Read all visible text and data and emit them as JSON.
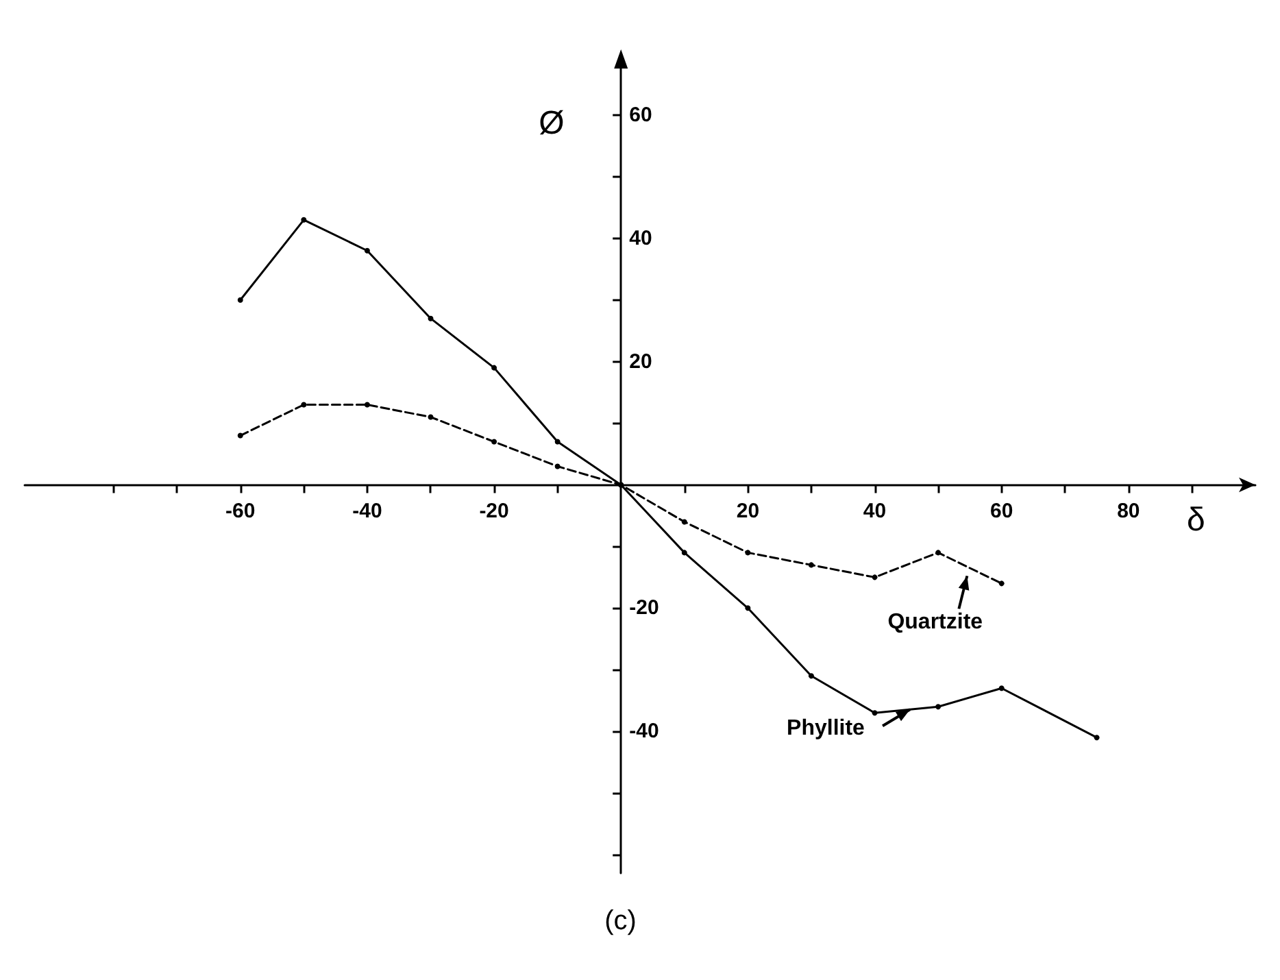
{
  "chart_data": {
    "type": "line",
    "xlabel": "δ",
    "ylabel": "Ø",
    "series": [
      {
        "color": "#000000",
        "line_style": "solid",
        "x": [
          -60,
          -50,
          -40,
          -30,
          -20,
          -10,
          0,
          10,
          20,
          30,
          40,
          50,
          60,
          75
        ],
        "values": [
          30,
          43,
          38,
          27,
          19,
          7,
          0,
          -11,
          -20,
          -31,
          -37,
          -36,
          -33,
          -41
        ]
      },
      {
        "color": "#000000",
        "line_style": "dashed",
        "x": [
          -60,
          -50,
          -40,
          -30,
          -20,
          -10,
          0,
          10,
          20,
          30,
          40,
          50,
          60
        ],
        "values": [
          8,
          13,
          13,
          11,
          7,
          3,
          0,
          -6,
          -11,
          -13,
          -15,
          -11,
          -16
        ]
      }
    ],
    "annotations": [
      {
        "text": "Quartzite",
        "x": 55,
        "y": -13
      },
      {
        "text": "Phyllite",
        "x": 46,
        "y": -36
      },
      "(c)"
    ],
    "marker": "circle",
    "grid": false,
    "xlim": [
      -94,
      100
    ],
    "ylim": [
      -63,
      68
    ],
    "xticks": [
      {
        "value": -80,
        "label": null
      },
      {
        "value": -70,
        "label": null
      },
      -60,
      {
        "value": -50,
        "label": null
      },
      -40,
      {
        "value": -30,
        "label": null
      },
      -20,
      {
        "value": -10,
        "label": null
      },
      {
        "value": 10,
        "label": null
      },
      20,
      {
        "value": 30,
        "label": null
      },
      40,
      {
        "value": 50,
        "label": null
      },
      60,
      {
        "value": 70,
        "label": null
      },
      80,
      {
        "value": 90,
        "label": null
      }
    ],
    "yticks": [
      {
        "value": -60,
        "label": null
      },
      {
        "value": -50,
        "label": null
      },
      -40,
      {
        "value": -30,
        "label": null
      },
      -20,
      {
        "value": -10,
        "label": null
      },
      {
        "value": 10,
        "label": null
      },
      20,
      {
        "value": 30,
        "label": null
      },
      40,
      {
        "value": 50,
        "label": null
      },
      60
    ]
  }
}
